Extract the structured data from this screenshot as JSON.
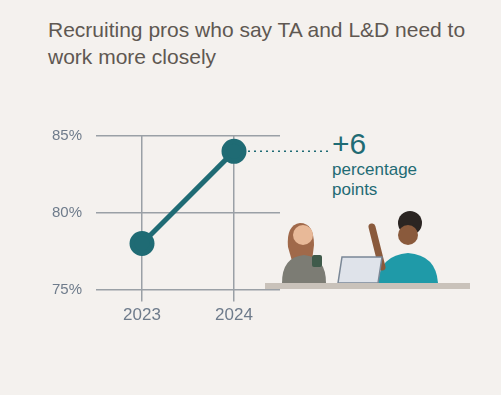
{
  "chart_data": {
    "type": "line",
    "title": "Recruiting pros who say TA and L&D need to work more closely",
    "categories": [
      "2023",
      "2024"
    ],
    "values": [
      78,
      84
    ],
    "color": "#1f6b74",
    "ylim": [
      75,
      85
    ],
    "yticks": [
      {
        "value": 75,
        "label": "75%"
      },
      {
        "value": 80,
        "label": "80%"
      },
      {
        "value": 85,
        "label": "85%"
      }
    ],
    "grid": true,
    "marker": "circle",
    "annotations": [
      "+6",
      "percentage points"
    ]
  }
}
